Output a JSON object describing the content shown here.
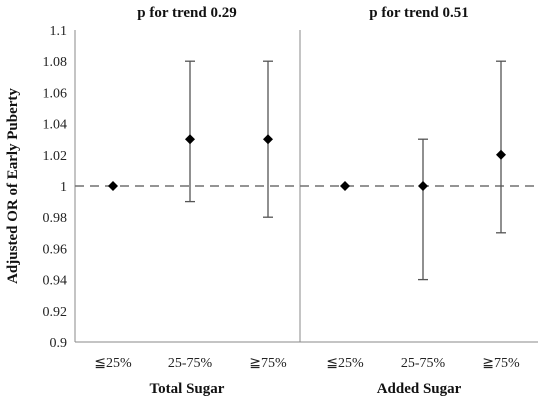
{
  "chart_data": {
    "type": "scatter",
    "ylabel": "Adjusted OR of Early Puberty",
    "ylim": [
      0.9,
      1.1
    ],
    "y_ticks": [
      "0.9",
      "0.92",
      "0.94",
      "0.96",
      "0.98",
      "1",
      "1.02",
      "1.04",
      "1.06",
      "1.08",
      "1.1"
    ],
    "reference_line": 1,
    "panels": [
      {
        "title": "p for trend 0.29",
        "group_label": "Total Sugar",
        "categories": [
          "≦25%",
          "25-75%",
          "≧75%"
        ],
        "values": [
          1.0,
          1.03,
          1.03
        ],
        "ci_low": [
          null,
          0.99,
          0.98
        ],
        "ci_high": [
          null,
          1.08,
          1.08
        ]
      },
      {
        "title": "p for trend 0.51",
        "group_label": "Added Sugar",
        "categories": [
          "≦25%",
          "25-75%",
          "≧75%"
        ],
        "values": [
          1.0,
          1.0,
          1.02
        ],
        "ci_low": [
          null,
          0.94,
          0.97
        ],
        "ci_high": [
          null,
          1.03,
          1.08
        ]
      }
    ]
  },
  "colors": {
    "marker": "#000000",
    "error_bar": "#555555",
    "axis": "#888888",
    "reference_line": "#707070"
  }
}
